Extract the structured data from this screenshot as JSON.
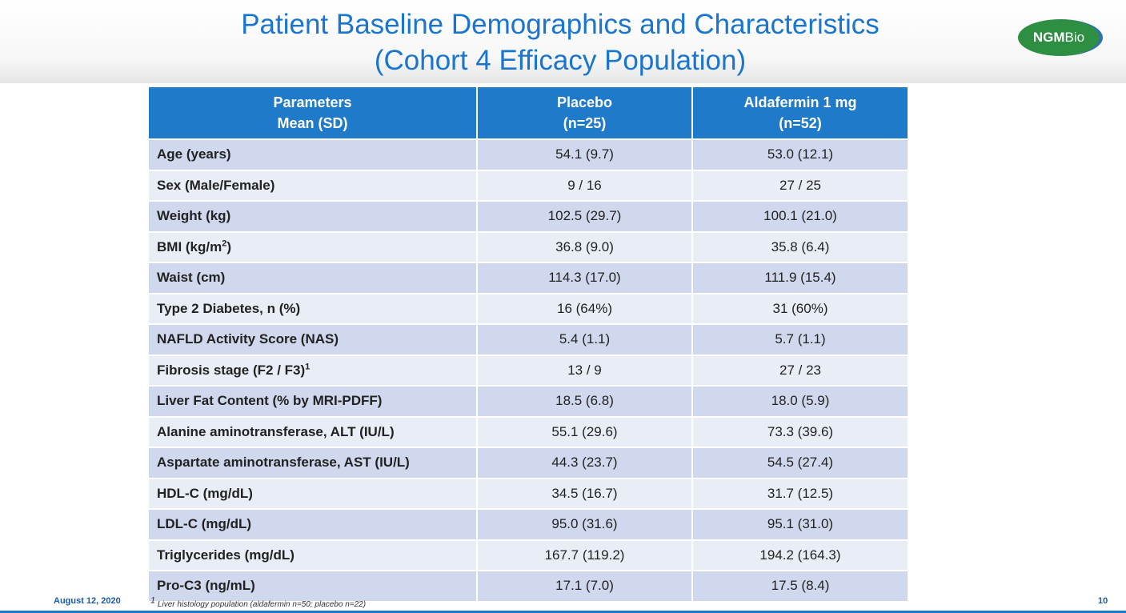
{
  "slide": {
    "title_line1": "Patient Baseline Demographics and Characteristics",
    "title_line2": "(Cohort 4 Efficacy Population)",
    "logo_bold": "NGM",
    "logo_light": "Bio",
    "date": "August 12, 2020",
    "footnote_mark": "1",
    "footnote": "Liver histology population (aldafermin n=50; placebo n=22)",
    "page_number": "10"
  },
  "table": {
    "headers": [
      {
        "line1": "Parameters",
        "line2": "Mean (SD)"
      },
      {
        "line1": "Placebo",
        "line2": "(n=25)"
      },
      {
        "line1": "Aldafermin 1 mg",
        "line2": "(n=52)"
      }
    ],
    "rows": [
      {
        "param": "Age (years)",
        "placebo": "54.1 (9.7)",
        "aldafermin": "53.0 (12.1)"
      },
      {
        "param": "Sex (Male/Female)",
        "placebo": "9 / 16",
        "aldafermin": "27 / 25"
      },
      {
        "param": "Weight (kg)",
        "placebo": "102.5 (29.7)",
        "aldafermin": "100.1 (21.0)"
      },
      {
        "param": "BMI (kg/m",
        "param_sup": "2",
        "param_after": ")",
        "placebo": "36.8 (9.0)",
        "aldafermin": "35.8 (6.4)"
      },
      {
        "param": "Waist (cm)",
        "placebo": "114.3 (17.0)",
        "aldafermin": "111.9 (15.4)"
      },
      {
        "param": "Type 2 Diabetes, n (%)",
        "placebo": "16 (64%)",
        "aldafermin": "31 (60%)"
      },
      {
        "param": "NAFLD Activity Score (NAS)",
        "placebo": "5.4 (1.1)",
        "aldafermin": "5.7 (1.1)"
      },
      {
        "param": "Fibrosis stage (F2 / F3)",
        "param_sup": "1",
        "placebo": "13 / 9",
        "aldafermin": "27 / 23"
      },
      {
        "param": "Liver Fat Content (% by MRI-PDFF)",
        "placebo": "18.5 (6.8)",
        "aldafermin": "18.0 (5.9)"
      },
      {
        "param": "Alanine aminotransferase, ALT (IU/L)",
        "placebo": "55.1 (29.6)",
        "aldafermin": "73.3 (39.6)"
      },
      {
        "param": "Aspartate aminotransferase, AST (IU/L)",
        "placebo": "44.3 (23.7)",
        "aldafermin": "54.5 (27.4)"
      },
      {
        "param": "HDL-C (mg/dL)",
        "placebo": "34.5 (16.7)",
        "aldafermin": "31.7 (12.5)"
      },
      {
        "param": "LDL-C (mg/dL)",
        "placebo": "95.0 (31.6)",
        "aldafermin": "95.1 (31.0)"
      },
      {
        "param": "Triglycerides (mg/dL)",
        "placebo": "167.7 (119.2)",
        "aldafermin": "194.2 (164.3)"
      },
      {
        "param": "Pro-C3 (ng/mL)",
        "placebo": "17.1 (7.0)",
        "aldafermin": "17.5 (8.4)"
      }
    ]
  },
  "colors": {
    "title": "#1a75cf",
    "header_fill": "#1f7ac9",
    "row_dark": "#cfd8ec",
    "row_light": "#e9edf6",
    "logo_green": "#2e8f43",
    "logo_blue": "#2e6fb5"
  }
}
